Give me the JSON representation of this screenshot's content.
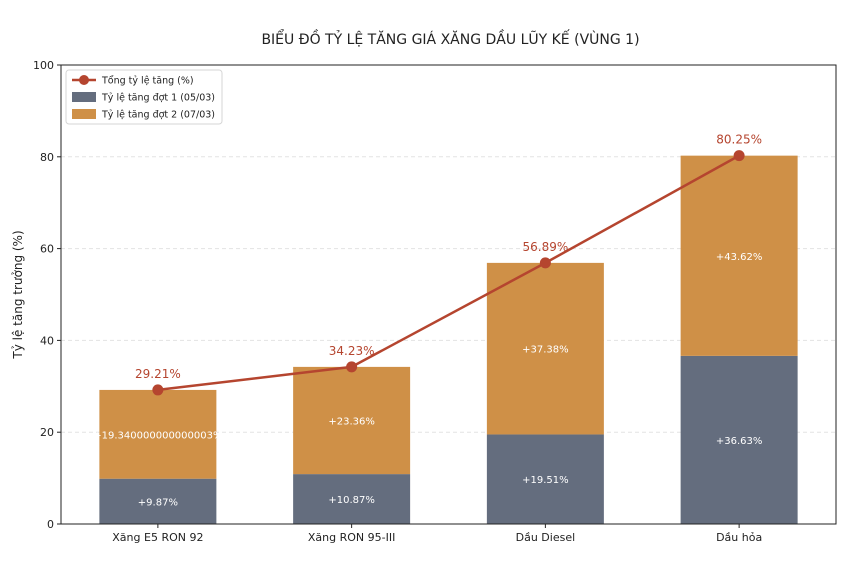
{
  "chart_data": {
    "type": "bar",
    "stacked": true,
    "title": "BIỂU ĐỒ TỶ LỆ TĂNG GIÁ XĂNG DẦU LŨY KẾ (VÙNG 1)",
    "xlabel": "",
    "ylabel": "Tỷ lệ tăng trưởng (%)",
    "ylim": [
      0,
      100
    ],
    "yticks": [
      0,
      20,
      40,
      60,
      80,
      100
    ],
    "grid": true,
    "legend_position": "top-left",
    "categories": [
      "Xăng E5 RON 92",
      "Xăng RON 95-III",
      "Dầu Diesel",
      "Dầu hỏa"
    ],
    "series": [
      {
        "name": "Tỷ lệ tăng đợt 1 (05/03)",
        "kind": "bar",
        "color": "#646d7e",
        "values": [
          9.87,
          10.87,
          19.51,
          36.63
        ],
        "labels": [
          "+9.87%",
          "+10.87%",
          "+19.51%",
          "+36.63%"
        ]
      },
      {
        "name": "Tỷ lệ tăng đợt 2 (07/03)",
        "kind": "bar",
        "color": "#cf9047",
        "values": [
          19.34,
          23.36,
          37.38,
          43.62
        ],
        "labels": [
          "+19.340000000000003%",
          "+23.36%",
          "+37.38%",
          "+43.62%"
        ]
      },
      {
        "name": "Tổng tỷ lệ tăng (%)",
        "kind": "line",
        "color": "#b5452f",
        "values": [
          29.21,
          34.23,
          56.89,
          80.25
        ],
        "labels": [
          "29.21%",
          "34.23%",
          "56.89%",
          "80.25%"
        ]
      }
    ]
  }
}
